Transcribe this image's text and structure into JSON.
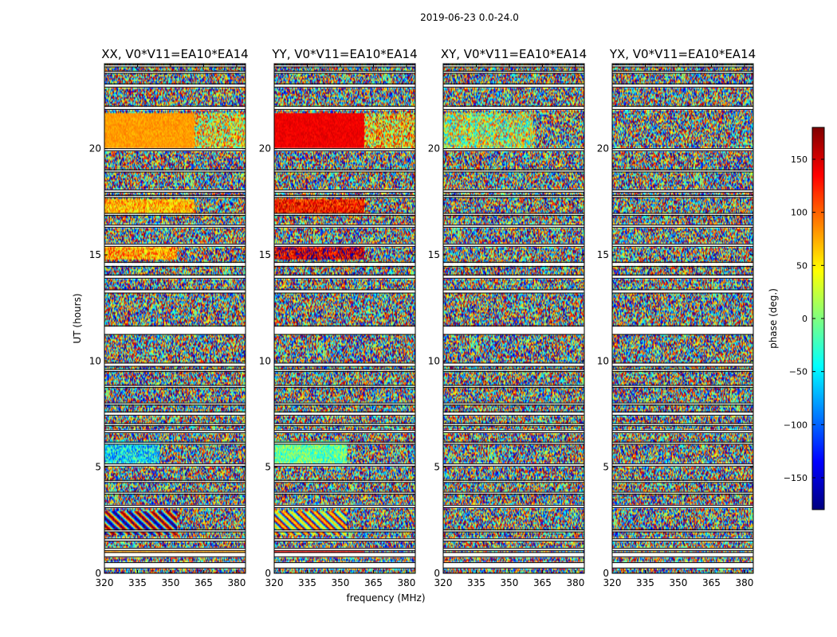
{
  "chart_data": {
    "type": "heatmap",
    "title": "2019-06-23 0.0-24.0",
    "xlabel": "frequency (MHz)",
    "ylabel": "UT (hours)",
    "xlim": [
      320,
      384
    ],
    "ylim": [
      0,
      24
    ],
    "xticks": [
      320,
      335,
      350,
      365,
      380
    ],
    "yticks": [
      0,
      5,
      10,
      15,
      20
    ],
    "colorbar": {
      "label": "phase (deg.)",
      "range": [
        -180,
        180
      ],
      "ticks": [
        150,
        100,
        50,
        0,
        -50,
        -100,
        -150
      ],
      "tick_labels": [
        "150",
        "100",
        "50",
        "0",
        "−50",
        "−100",
        "−150"
      ],
      "colormap": "jet",
      "colors": [
        "#00007f",
        "#0000ff",
        "#007fff",
        "#00ffff",
        "#7fff7f",
        "#ffff00",
        "#ff7f00",
        "#ff0000",
        "#7f0000"
      ]
    },
    "flagged_ut_ranges": [
      [
        0.25,
        0.5
      ],
      [
        0.78,
        0.98
      ],
      [
        1.08,
        1.18
      ],
      [
        1.52,
        1.62
      ],
      [
        1.95,
        2.05
      ],
      [
        3.1,
        3.2
      ],
      [
        3.72,
        3.82
      ],
      [
        4.28,
        4.38
      ],
      [
        5.05,
        5.15
      ],
      [
        6.08,
        6.18
      ],
      [
        6.62,
        6.72
      ],
      [
        6.95,
        7.05
      ],
      [
        7.45,
        7.6
      ],
      [
        7.92,
        8.02
      ],
      [
        8.75,
        8.85
      ],
      [
        9.5,
        9.6
      ],
      [
        9.75,
        9.9
      ],
      [
        11.25,
        11.65
      ],
      [
        13.2,
        13.35
      ],
      [
        13.9,
        14.05
      ],
      [
        14.45,
        14.65
      ],
      [
        15.4,
        15.5
      ],
      [
        16.3,
        16.4
      ],
      [
        16.85,
        16.95
      ],
      [
        17.7,
        17.8
      ],
      [
        17.95,
        18.05
      ],
      [
        18.9,
        19.0
      ],
      [
        19.9,
        20.0
      ],
      [
        21.85,
        22.0
      ],
      [
        22.9,
        23.05
      ],
      [
        23.55,
        23.65
      ],
      [
        23.85,
        23.95
      ]
    ],
    "panels": [
      {
        "title": "XX, V0*V11=EA10*EA14",
        "coherent_bands": [
          {
            "ut": [
              20.0,
              21.7
            ],
            "freq": [
              320,
              361
            ],
            "phase_deg": 80,
            "spread_deg": 14
          },
          {
            "ut": [
              20.0,
              21.7
            ],
            "freq": [
              361,
              384
            ],
            "phase_deg": 45,
            "spread_deg": 110
          },
          {
            "ut": [
              16.9,
              17.6
            ],
            "freq": [
              320,
              361
            ],
            "phase_deg": 70,
            "spread_deg": 50
          },
          {
            "ut": [
              14.8,
              15.5
            ],
            "freq": [
              320,
              353
            ],
            "phase_deg": 75,
            "spread_deg": 60
          },
          {
            "ut": [
              5.2,
              6.2
            ],
            "freq": [
              320,
              345
            ],
            "phase_deg": -55,
            "spread_deg": 70
          },
          {
            "ut": [
              0.85,
              1.05
            ],
            "freq": [
              320,
              384
            ],
            "phase_deg": 80,
            "spread_deg": 15
          },
          {
            "ut": [
              1.8,
              2.9
            ],
            "freq": [
              320,
              353
            ],
            "phase_deg": 0,
            "spread_deg": 180
          }
        ]
      },
      {
        "title": "YY, V0*V11=EA10*EA14",
        "coherent_bands": [
          {
            "ut": [
              20.0,
              21.7
            ],
            "freq": [
              320,
              361
            ],
            "phase_deg": 140,
            "spread_deg": 12
          },
          {
            "ut": [
              20.0,
              21.7
            ],
            "freq": [
              361,
              384
            ],
            "phase_deg": 60,
            "spread_deg": 110
          },
          {
            "ut": [
              16.9,
              17.6
            ],
            "freq": [
              320,
              361
            ],
            "phase_deg": 130,
            "spread_deg": 50
          },
          {
            "ut": [
              14.8,
              15.5
            ],
            "freq": [
              320,
              361
            ],
            "phase_deg": 150,
            "spread_deg": 60
          },
          {
            "ut": [
              5.2,
              6.2
            ],
            "freq": [
              320,
              353
            ],
            "phase_deg": -10,
            "spread_deg": 50
          },
          {
            "ut": [
              0.85,
              1.05
            ],
            "freq": [
              320,
              361
            ],
            "phase_deg": 140,
            "spread_deg": 15
          },
          {
            "ut": [
              1.8,
              2.9
            ],
            "freq": [
              320,
              353
            ],
            "phase_deg": -120,
            "spread_deg": 140
          }
        ]
      },
      {
        "title": "XY, V0*V11=EA10*EA14",
        "coherent_bands": [
          {
            "ut": [
              20.0,
              21.7
            ],
            "freq": [
              320,
              361
            ],
            "phase_deg": 20,
            "spread_deg": 110
          }
        ]
      },
      {
        "title": "YX, V0*V11=EA10*EA14",
        "coherent_bands": []
      }
    ]
  }
}
